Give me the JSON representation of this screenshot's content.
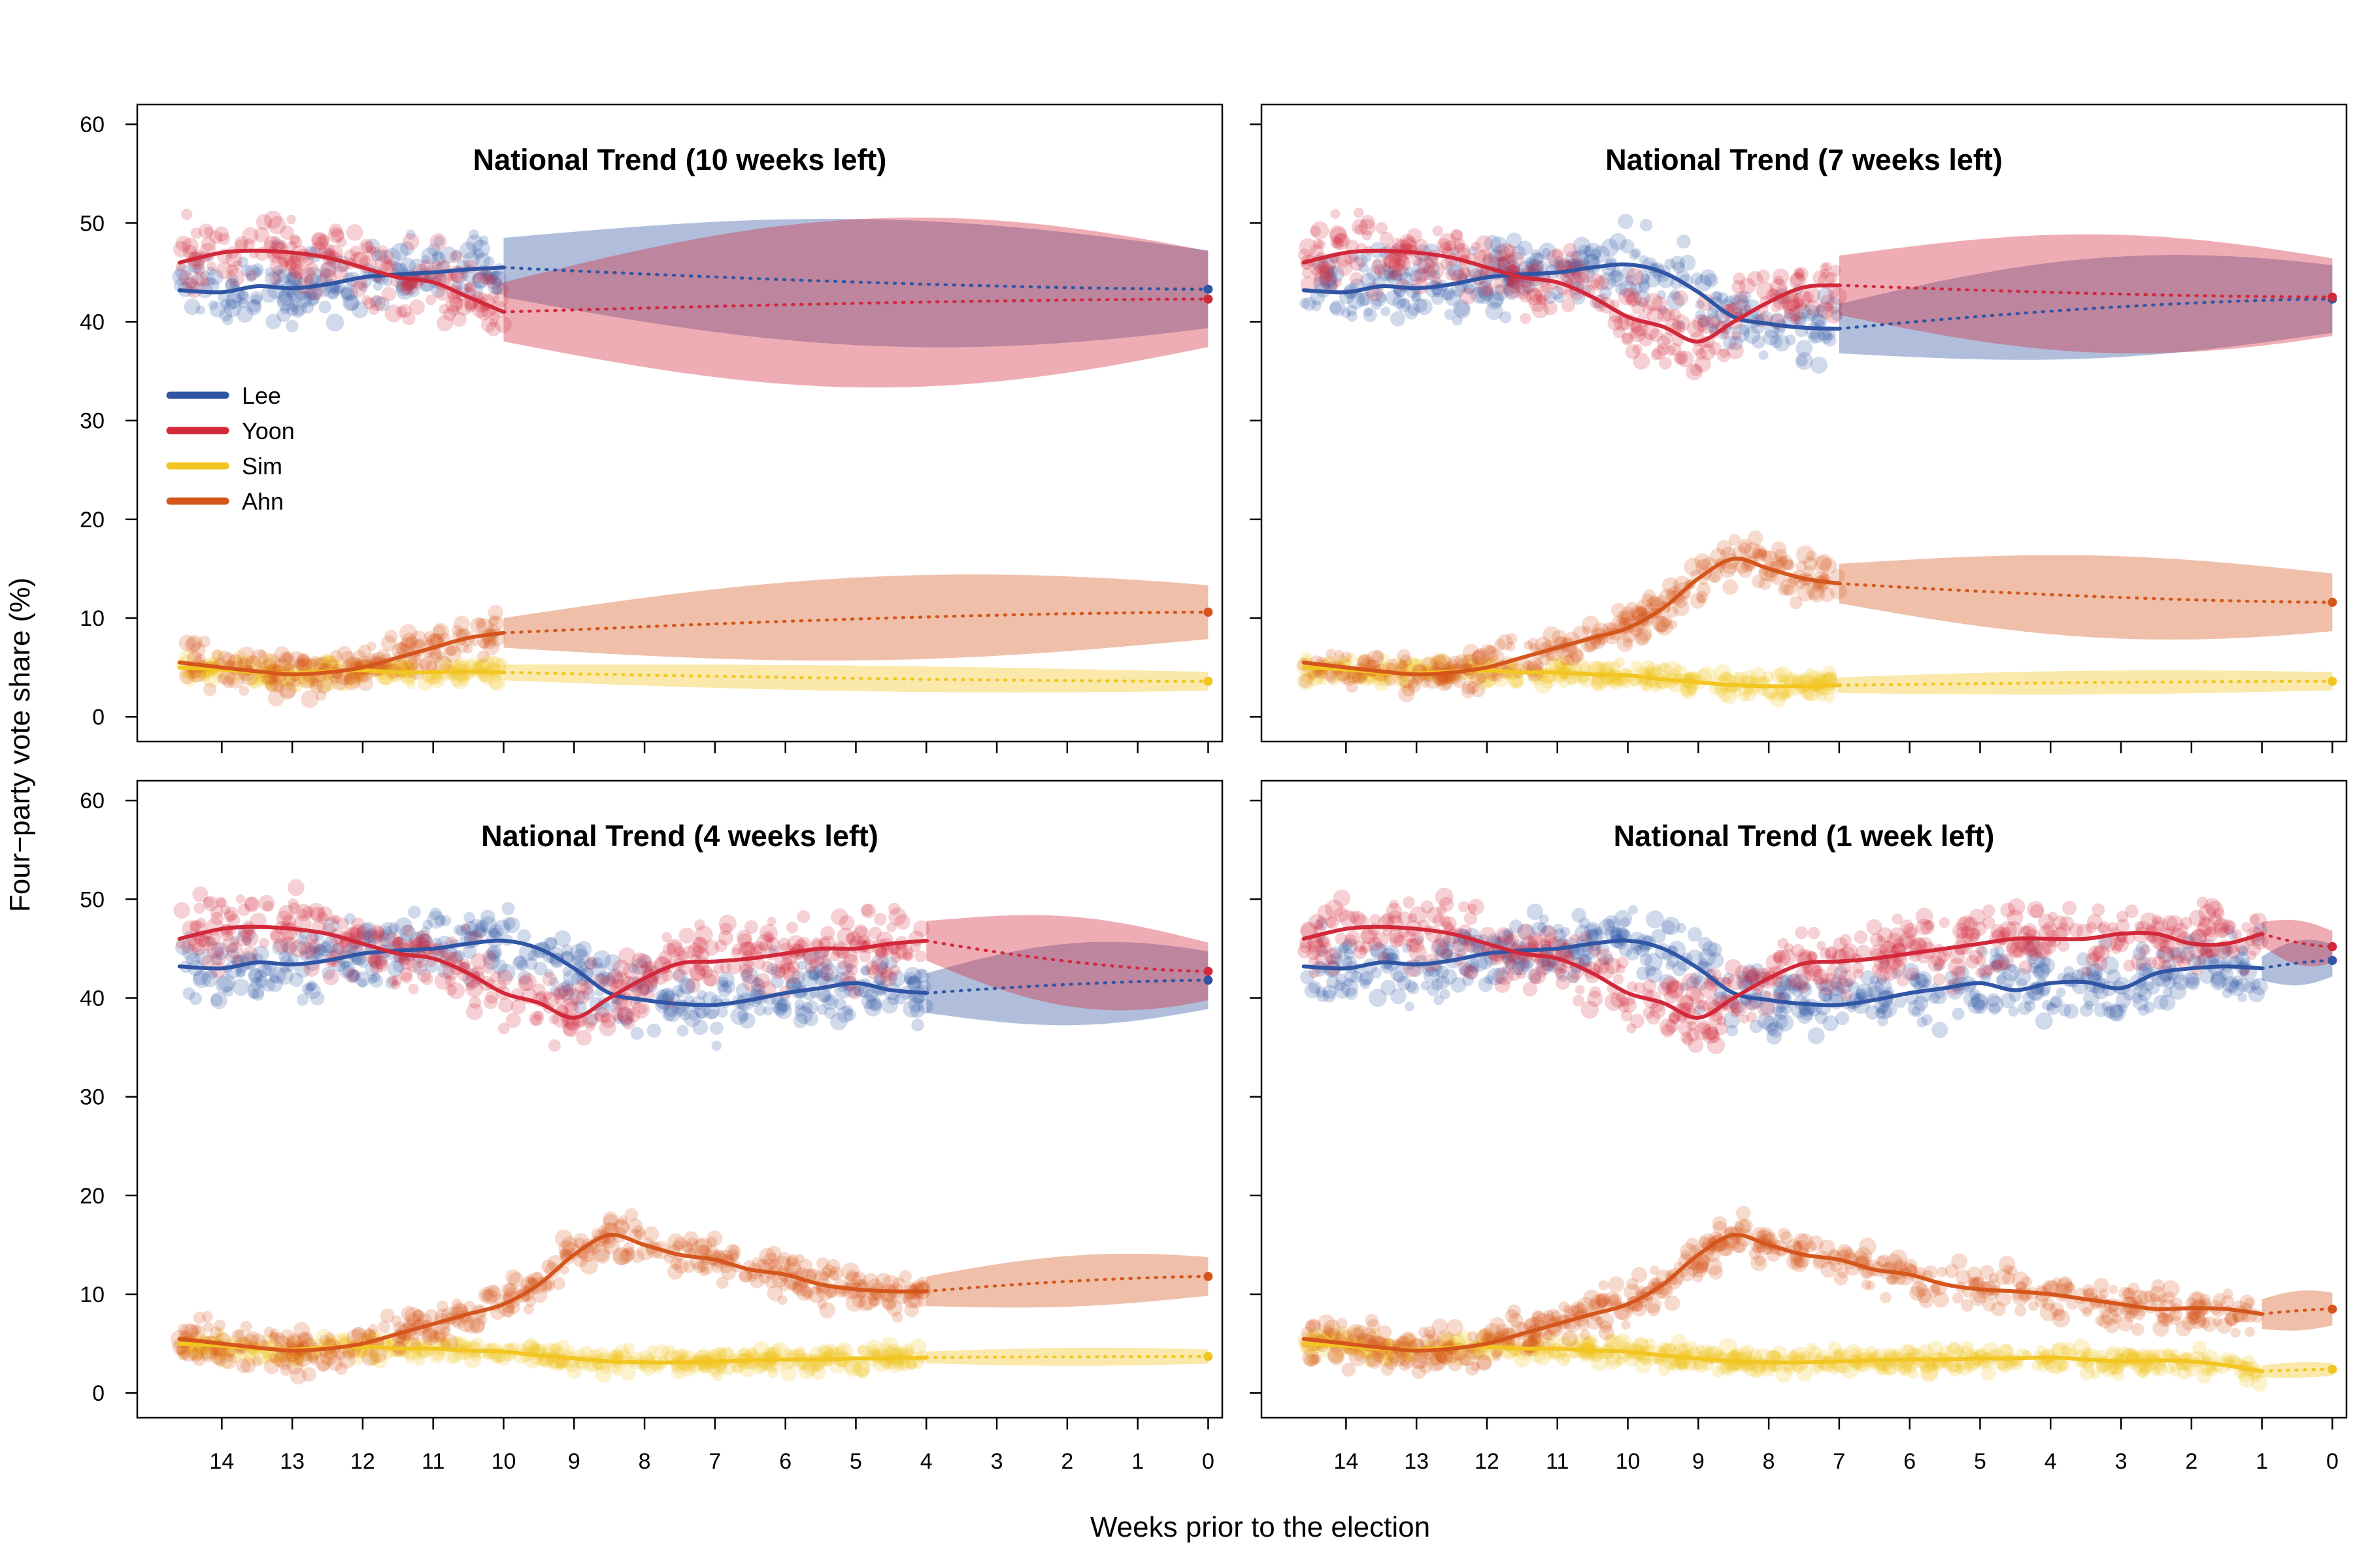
{
  "chart_data": {
    "type": "line",
    "xlabel": "Weeks prior to the election",
    "ylabel": "Four−party vote share (%)",
    "xlim": [
      15.2,
      -0.2
    ],
    "ylim": [
      -2.5,
      62
    ],
    "x_ticks": [
      14,
      13,
      12,
      11,
      10,
      9,
      8,
      7,
      6,
      5,
      4,
      3,
      2,
      1,
      0
    ],
    "y_ticks": [
      0,
      10,
      20,
      30,
      40,
      50,
      60
    ],
    "legend": {
      "placement": "left",
      "entries": [
        {
          "name": "Lee",
          "color": "#2f55a4"
        },
        {
          "name": "Yoon",
          "color": "#d2283a"
        },
        {
          "name": "Sim",
          "color": "#f2c521"
        },
        {
          "name": "Ahn",
          "color": "#d4561c"
        }
      ]
    },
    "panels": [
      {
        "title": "National Trend (10 weeks left)",
        "cutoff": 10,
        "series": [
          {
            "name": "Lee",
            "color": "#2f55a4",
            "trend_x": [
              14.6,
              14,
              13.5,
              13,
              12.5,
              12,
              11.5,
              11,
              10.5,
              10
            ],
            "trend_y": [
              43.2,
              43,
              43.6,
              43.4,
              43.8,
              44.5,
              44.8,
              45,
              45.3,
              45.5
            ],
            "forecast_end": 43.3,
            "band_start": 3,
            "band_max": 6.5,
            "band_end": 2.5
          },
          {
            "name": "Yoon",
            "color": "#d2283a",
            "trend_x": [
              14.6,
              14,
              13.5,
              13,
              12.5,
              12,
              11.5,
              11,
              10.5,
              10
            ],
            "trend_y": [
              46,
              47,
              47.2,
              47,
              46.5,
              45.5,
              44.5,
              44,
              42.5,
              41
            ],
            "forecast_end": 42.3,
            "band_start": 3,
            "band_max": 8.5,
            "band_end": 3.5
          },
          {
            "name": "Sim",
            "color": "#f2c521",
            "trend_x": [
              14.6,
              14,
              13.5,
              13,
              12.5,
              12,
              11.5,
              11,
              10.5,
              10
            ],
            "trend_y": [
              5,
              4.8,
              4.5,
              4.4,
              4.6,
              4.7,
              4.5,
              4.5,
              4.6,
              4.5
            ],
            "forecast_end": 3.6,
            "band_start": 0.8,
            "band_max": 1.3,
            "band_end": 0.8
          },
          {
            "name": "Ahn",
            "color": "#d4561c",
            "trend_x": [
              14.6,
              14,
              13.5,
              13,
              12.5,
              12,
              11.5,
              11,
              10.5,
              10
            ],
            "trend_y": [
              5.5,
              5,
              4.6,
              4.3,
              4.5,
              5,
              6,
              7,
              8,
              8.5
            ],
            "forecast_end": 10.6,
            "band_start": 1.5,
            "band_max": 4,
            "band_end": 3
          }
        ]
      },
      {
        "title": "National Trend (7 weeks left)",
        "cutoff": 7,
        "series": [
          {
            "name": "Lee",
            "color": "#2f55a4",
            "trend_x": [
              14.6,
              14,
              13.5,
              13,
              12.5,
              12,
              11.5,
              11,
              10.5,
              10,
              9.5,
              9,
              8.5,
              8,
              7.5,
              7
            ],
            "trend_y": [
              43.2,
              43,
              43.6,
              43.4,
              43.8,
              44.5,
              44.8,
              45,
              45.5,
              45.8,
              45,
              43,
              40.5,
              39.8,
              39.4,
              39.3
            ],
            "forecast_end": 42.3,
            "band_start": 2.5,
            "band_max": 5,
            "band_end": 3
          },
          {
            "name": "Yoon",
            "color": "#d2283a",
            "trend_x": [
              14.6,
              14,
              13.5,
              13,
              12.5,
              12,
              11.5,
              11,
              10.5,
              10,
              9.5,
              9,
              8.5,
              8,
              7.5,
              7
            ],
            "trend_y": [
              46,
              47,
              47.2,
              47,
              46.5,
              45.5,
              44.5,
              44,
              42.5,
              40.5,
              39.5,
              38,
              40,
              42,
              43.5,
              43.7
            ],
            "forecast_end": 42.5,
            "band_start": 3,
            "band_max": 6,
            "band_end": 3
          },
          {
            "name": "Sim",
            "color": "#f2c521",
            "trend_x": [
              14.6,
              14,
              13.5,
              13,
              12.5,
              12,
              11.5,
              11,
              10.5,
              10,
              9.5,
              9,
              8.5,
              8,
              7.5,
              7
            ],
            "trend_y": [
              5,
              4.8,
              4.5,
              4.4,
              4.6,
              4.7,
              4.5,
              4.5,
              4.3,
              4.2,
              3.8,
              3.5,
              3.2,
              3.1,
              3.1,
              3.2
            ],
            "forecast_end": 3.6,
            "band_start": 0.8,
            "band_max": 1.2,
            "band_end": 0.8
          },
          {
            "name": "Ahn",
            "color": "#d4561c",
            "trend_x": [
              14.6,
              14,
              13.5,
              13,
              12.5,
              12,
              11.5,
              11,
              10.5,
              10,
              9.5,
              9,
              8.5,
              8,
              7.5,
              7
            ],
            "trend_y": [
              5.5,
              5,
              4.6,
              4.3,
              4.5,
              5,
              6,
              7,
              8,
              9,
              11,
              14,
              16,
              15,
              14,
              13.5
            ],
            "forecast_end": 11.6,
            "band_start": 2,
            "band_max": 4,
            "band_end": 3
          }
        ]
      },
      {
        "title": "National Trend (4 weeks left)",
        "cutoff": 4,
        "series": [
          {
            "name": "Lee",
            "color": "#2f55a4",
            "trend_x": [
              14.6,
              14,
              13.5,
              13,
              12.5,
              12,
              11.5,
              11,
              10.5,
              10,
              9.5,
              9,
              8.5,
              8,
              7.5,
              7,
              6.5,
              6,
              5.5,
              5,
              4.5,
              4
            ],
            "trend_y": [
              43.2,
              43,
              43.6,
              43.4,
              43.8,
              44.5,
              44.8,
              45,
              45.5,
              45.8,
              45,
              43,
              40.5,
              39.8,
              39.4,
              39.3,
              39.8,
              40.5,
              41,
              41.5,
              40.8,
              40.5
            ],
            "forecast_end": 41.8,
            "band_start": 2,
            "band_max": 4,
            "band_end": 3
          },
          {
            "name": "Yoon",
            "color": "#d2283a",
            "trend_x": [
              14.6,
              14,
              13.5,
              13,
              12.5,
              12,
              11.5,
              11,
              10.5,
              10,
              9.5,
              9,
              8.5,
              8,
              7.5,
              7,
              6.5,
              6,
              5.5,
              5,
              4.5,
              4
            ],
            "trend_y": [
              46,
              47,
              47.2,
              47,
              46.5,
              45.5,
              44.5,
              44,
              42.5,
              40.5,
              39.5,
              38,
              40,
              42,
              43.5,
              43.7,
              44,
              44.5,
              45,
              45,
              45.5,
              45.8
            ],
            "forecast_end": 42.7,
            "band_start": 2,
            "band_max": 4.5,
            "band_end": 2.5
          },
          {
            "name": "Sim",
            "color": "#f2c521",
            "trend_x": [
              14.6,
              14,
              13.5,
              13,
              12.5,
              12,
              11.5,
              11,
              10.5,
              10,
              9.5,
              9,
              8.5,
              8,
              7.5,
              7,
              6.5,
              6,
              5.5,
              5,
              4.5,
              4
            ],
            "trend_y": [
              5,
              4.8,
              4.5,
              4.4,
              4.6,
              4.7,
              4.5,
              4.5,
              4.3,
              4.2,
              3.8,
              3.5,
              3.2,
              3.1,
              3.1,
              3.2,
              3.3,
              3.4,
              3.4,
              3.5,
              3.5,
              3.6
            ],
            "forecast_end": 3.7,
            "band_start": 0.6,
            "band_max": 0.9,
            "band_end": 0.7
          },
          {
            "name": "Ahn",
            "color": "#d4561c",
            "trend_x": [
              14.6,
              14,
              13.5,
              13,
              12.5,
              12,
              11.5,
              11,
              10.5,
              10,
              9.5,
              9,
              8.5,
              8,
              7.5,
              7,
              6.5,
              6,
              5.5,
              5,
              4.5,
              4
            ],
            "trend_y": [
              5.5,
              5,
              4.6,
              4.3,
              4.5,
              5,
              6,
              7,
              8,
              9,
              11,
              14,
              16,
              15,
              14,
              13.5,
              12.5,
              12,
              11,
              10.5,
              10.3,
              10.3
            ],
            "forecast_end": 11.8,
            "band_start": 1.5,
            "band_max": 2.5,
            "band_end": 2
          }
        ]
      },
      {
        "title": "National Trend (1 week left)",
        "cutoff": 1,
        "series": [
          {
            "name": "Lee",
            "color": "#2f55a4",
            "trend_x": [
              14.6,
              14,
              13.5,
              13,
              12.5,
              12,
              11.5,
              11,
              10.5,
              10,
              9.5,
              9,
              8.5,
              8,
              7.5,
              7,
              6.5,
              6,
              5.5,
              5,
              4.5,
              4,
              3.5,
              3,
              2.5,
              2,
              1.5,
              1
            ],
            "trend_y": [
              43.2,
              43,
              43.6,
              43.4,
              43.8,
              44.5,
              44.8,
              45,
              45.5,
              45.8,
              45,
              43,
              40.5,
              39.8,
              39.4,
              39.3,
              39.8,
              40.5,
              41,
              41.5,
              40.8,
              41.5,
              41.6,
              41,
              42.5,
              43,
              43.2,
              43
            ],
            "forecast_end": 43.8,
            "band_start": 1.2,
            "band_max": 2.2,
            "band_end": 1.6
          },
          {
            "name": "Yoon",
            "color": "#d2283a",
            "trend_x": [
              14.6,
              14,
              13.5,
              13,
              12.5,
              12,
              11.5,
              11,
              10.5,
              10,
              9.5,
              9,
              8.5,
              8,
              7.5,
              7,
              6.5,
              6,
              5.5,
              5,
              4.5,
              4,
              3.5,
              3,
              2.5,
              2,
              1.5,
              1
            ],
            "trend_y": [
              46,
              47,
              47.2,
              47,
              46.5,
              45.5,
              44.5,
              44,
              42.5,
              40.5,
              39.5,
              38,
              40,
              42,
              43.5,
              43.7,
              44,
              44.5,
              45,
              45.5,
              46,
              46,
              46,
              46.5,
              46.5,
              45.5,
              45.5,
              46.5
            ],
            "forecast_end": 45.2,
            "band_start": 1.2,
            "band_max": 2.2,
            "band_end": 1.5
          },
          {
            "name": "Sim",
            "color": "#f2c521",
            "trend_x": [
              14.6,
              14,
              13.5,
              13,
              12.5,
              12,
              11.5,
              11,
              10.5,
              10,
              9.5,
              9,
              8.5,
              8,
              7.5,
              7,
              6.5,
              6,
              5.5,
              5,
              4.5,
              4,
              3.5,
              3,
              2.5,
              2,
              1.5,
              1
            ],
            "trend_y": [
              5,
              4.8,
              4.5,
              4.4,
              4.6,
              4.7,
              4.5,
              4.5,
              4.3,
              4.2,
              3.8,
              3.5,
              3.2,
              3.1,
              3.1,
              3.2,
              3.3,
              3.4,
              3.4,
              3.5,
              3.5,
              3.6,
              3.4,
              3.2,
              3.3,
              3.2,
              2.8,
              2.2
            ],
            "forecast_end": 2.4,
            "band_start": 0.6,
            "band_max": 0.8,
            "band_end": 0.5
          },
          {
            "name": "Ahn",
            "color": "#d4561c",
            "trend_x": [
              14.6,
              14,
              13.5,
              13,
              12.5,
              12,
              11.5,
              11,
              10.5,
              10,
              9.5,
              9,
              8.5,
              8,
              7.5,
              7,
              6.5,
              6,
              5.5,
              5,
              4.5,
              4,
              3.5,
              3,
              2.5,
              2,
              1.5,
              1
            ],
            "trend_y": [
              5.5,
              5,
              4.6,
              4.3,
              4.5,
              5,
              6,
              7,
              8,
              9,
              11,
              14,
              16,
              15,
              14,
              13.5,
              12.5,
              12,
              11,
              10.5,
              10.3,
              10,
              9.5,
              9,
              8.5,
              8.6,
              8.5,
              8
            ],
            "forecast_end": 8.5,
            "band_start": 1.5,
            "band_max": 2,
            "band_end": 1.5
          }
        ]
      }
    ]
  }
}
